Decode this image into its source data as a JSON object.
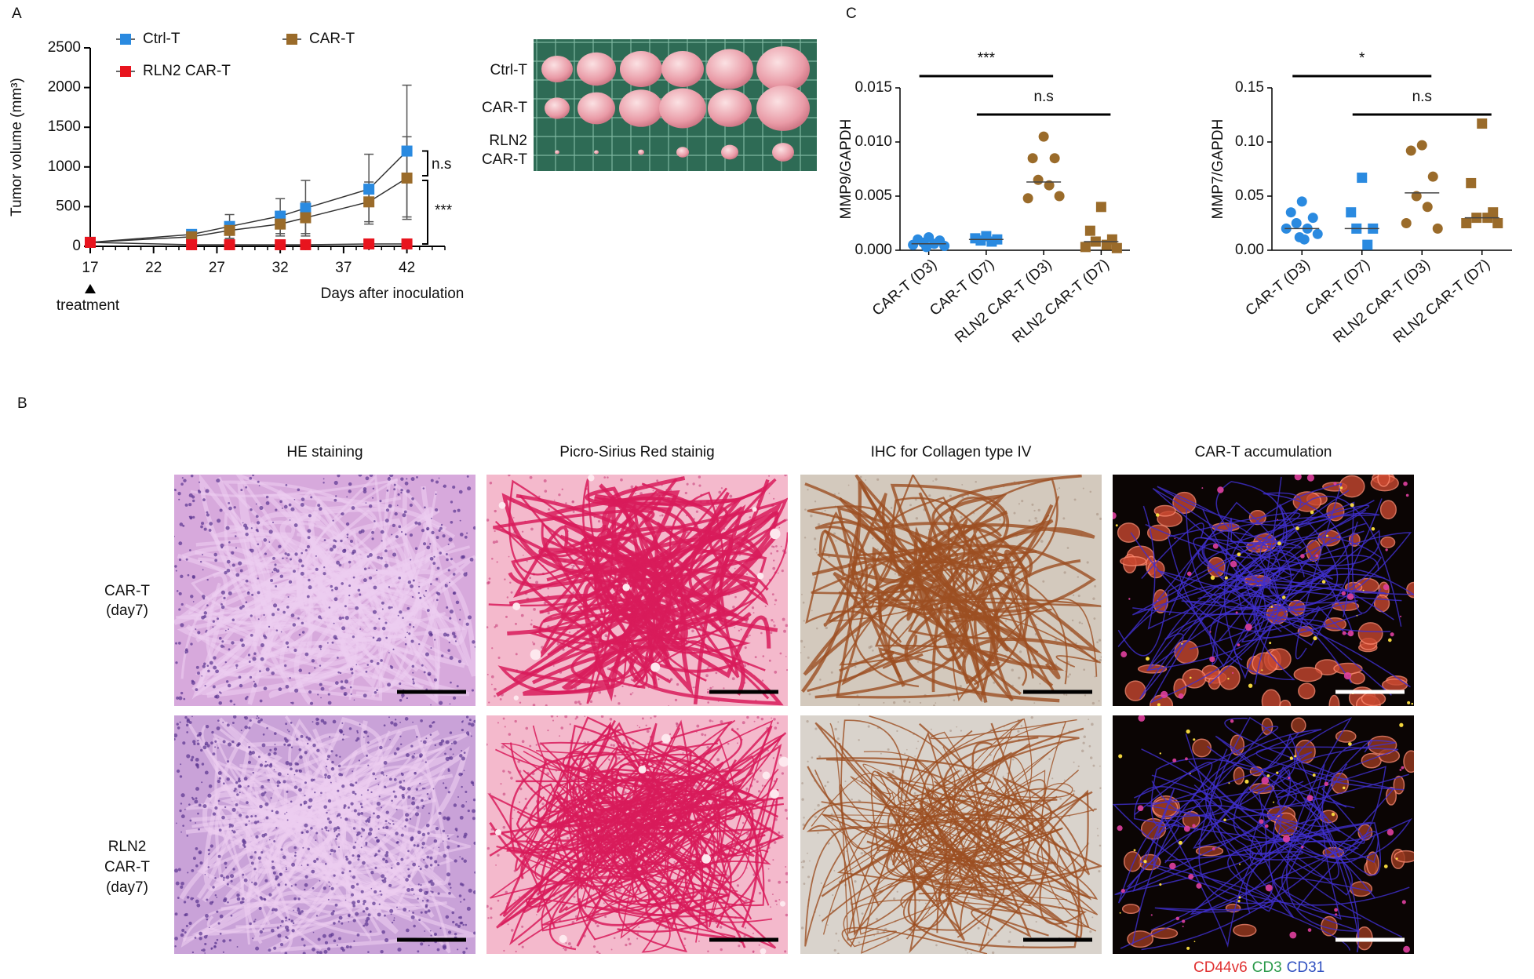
{
  "panel_labels": [
    "A",
    "B",
    "C"
  ],
  "chart_data": [
    {
      "type": "line",
      "xlabel": "Days after inoculation",
      "ylabel": "Tumor volume (mm³)",
      "x": [
        17,
        25,
        28,
        32,
        34,
        39,
        42
      ],
      "xlim": [
        17,
        45
      ],
      "xticks": [
        17,
        22,
        27,
        32,
        37,
        42
      ],
      "ylim": [
        0,
        2500
      ],
      "yticks": [
        0,
        500,
        1000,
        1500,
        2000,
        2500
      ],
      "series": [
        {
          "name": "Ctrl-T",
          "color": "#2a8ae0",
          "values": [
            50,
            150,
            250,
            380,
            480,
            720,
            1200
          ],
          "errors": [
            20,
            40,
            150,
            220,
            350,
            440,
            830
          ]
        },
        {
          "name": "CAR-T",
          "color": "#9a6b2a",
          "values": [
            50,
            120,
            200,
            280,
            360,
            560,
            860
          ],
          "errors": [
            20,
            30,
            100,
            150,
            200,
            250,
            520
          ]
        },
        {
          "name": "RLN2 CAR-T",
          "color": "#e8141e",
          "values": [
            50,
            20,
            20,
            20,
            20,
            30,
            30
          ]
        }
      ],
      "annotations": [
        "n.s",
        "***",
        "treatment"
      ]
    },
    {
      "type": "dot",
      "ylabel": "MMP9/GAPDH",
      "categories": [
        "CAR-T (D3)",
        "CAR-T (D7)",
        "RLN2 CAR-T (D3)",
        "RLN2 CAR-T (D7)"
      ],
      "colors": [
        "#2a8ae0",
        "#2a8ae0",
        "#9a6b2a",
        "#9a6b2a"
      ],
      "markers": [
        "circle",
        "square",
        "circle",
        "square"
      ],
      "points": [
        [
          0.0012,
          0.001,
          0.0009,
          0.0007,
          0.0006,
          0.0005,
          0.0004,
          0.0003
        ],
        [
          0.0013,
          0.0011,
          0.001,
          0.0009,
          0.0008
        ],
        [
          0.0105,
          0.0085,
          0.0085,
          0.0065,
          0.006,
          0.0048,
          0.005
        ],
        [
          0.004,
          0.0018,
          0.001,
          0.0008,
          0.0005,
          0.0003,
          0.0002
        ]
      ],
      "medians": [
        0.0006,
        0.001,
        0.0063,
        0.0008
      ],
      "ylim": [
        0,
        0.015
      ],
      "yticks": [
        {
          "value": 0,
          "label": "0.000"
        },
        0.005,
        {
          "value": 0.01,
          "label": "0.010"
        },
        0.015
      ],
      "annotations": [
        "***",
        "n.s"
      ]
    },
    {
      "type": "dot",
      "ylabel": "MMP7/GAPDH",
      "categories": [
        "CAR-T (D3)",
        "CAR-T (D7)",
        "RLN2 CAR-T (D3)",
        "RLN2 CAR-T (D7)"
      ],
      "colors": [
        "#2a8ae0",
        "#2a8ae0",
        "#9a6b2a",
        "#9a6b2a"
      ],
      "markers": [
        "circle",
        "square",
        "circle",
        "square"
      ],
      "points": [
        [
          0.045,
          0.035,
          0.03,
          0.025,
          0.02,
          0.02,
          0.015,
          0.012,
          0.01
        ],
        [
          0.067,
          0.035,
          0.02,
          0.02,
          0.005
        ],
        [
          0.097,
          0.092,
          0.068,
          0.05,
          0.04,
          0.025,
          0.02
        ],
        [
          0.117,
          0.062,
          0.035,
          0.03,
          0.03,
          0.025,
          0.025
        ]
      ],
      "medians": [
        0.02,
        0.02,
        0.053,
        0.03
      ],
      "ylim": [
        0,
        0.15
      ],
      "yticks": [
        {
          "value": 0,
          "label": "0.00"
        },
        0.05,
        {
          "value": 0.1,
          "label": "0.10"
        },
        0.15
      ],
      "annotations": [
        "*",
        "n.s"
      ]
    }
  ],
  "tumor_photo": {
    "row_labels": [
      [
        "Ctrl-T"
      ],
      [
        "CAR-T"
      ],
      [
        "RLN2",
        "CAR-T"
      ]
    ]
  },
  "histology": {
    "columns": [
      "HE staining",
      "Picro-Sirius Red stainig",
      "IHC for Collagen type IV",
      "CAR-T accumulation"
    ],
    "rows": [
      [
        "CAR-T",
        "(day7)"
      ],
      [
        "RLN2",
        "CAR-T",
        "(day7)"
      ]
    ],
    "legend": [
      {
        "text": "CD44v6",
        "color": "#e03030"
      },
      {
        "text": "CD3",
        "color": "#2a9a4a"
      },
      {
        "text": "CD31",
        "color": "#3050c0"
      }
    ]
  }
}
